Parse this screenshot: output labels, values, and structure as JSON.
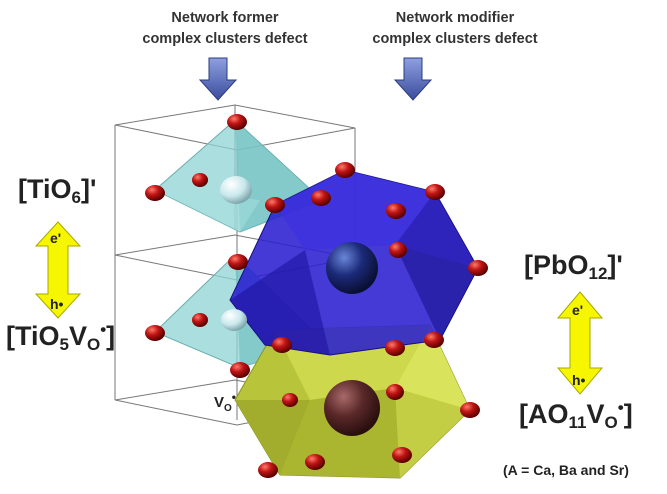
{
  "headers": {
    "former_line1": "Network former",
    "former_line2": "complex clusters defect",
    "modifier_line1": "Network modifier",
    "modifier_line2": "complex clusters defect"
  },
  "left": {
    "top_pre": "[TiO",
    "top_sub": "6",
    "top_post": "]'",
    "bottom_pre": "[TiO",
    "bottom_sub1": "5",
    "bottom_mid": "V",
    "bottom_sub2": "O",
    "bottom_sup": "•",
    "bottom_post": "]",
    "arrow_top": "e'",
    "arrow_bottom": "h•"
  },
  "right": {
    "top_pre": "[PbO",
    "top_sub": "12",
    "top_post": "]'",
    "bottom_pre": "[AO",
    "bottom_sub1": "11",
    "bottom_mid": "V",
    "bottom_sub2": "O",
    "bottom_sup": "•",
    "bottom_post": "]",
    "arrow_top": "e'",
    "arrow_bottom": "h•",
    "note": "(A = Ca, Ba and Sr)"
  },
  "vacancy": {
    "pre": "V",
    "sub": "O",
    "sup": "•"
  },
  "colors": {
    "octahedron": "#8fd3d3",
    "blue_polyhedron": "#2b1fd0",
    "yellow_polyhedron": "#b8c43a",
    "oxygen": "#a50d0d",
    "arrow_yellow": "#f6f600",
    "header_arrow": "#4a5fb0"
  }
}
